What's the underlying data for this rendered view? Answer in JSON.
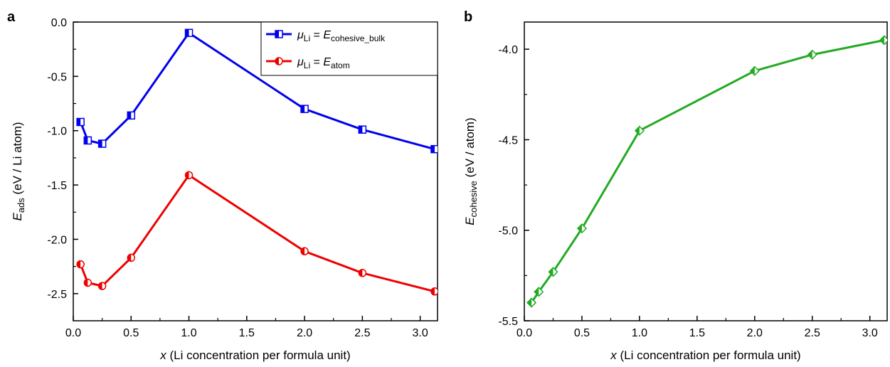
{
  "chart_data": [
    {
      "panel_label": "a",
      "type": "line",
      "x": [
        0.0625,
        0.125,
        0.25,
        0.5,
        1.0,
        2.0,
        2.5,
        3.125
      ],
      "xlim": [
        0,
        3.15
      ],
      "ylim": [
        -2.75,
        0.0
      ],
      "xticks": [
        "0.0",
        "0.5",
        "1.0",
        "1.5",
        "2.0",
        "2.5",
        "3.0"
      ],
      "yticks": [
        "0.0",
        "-0.5",
        "-1.0",
        "-1.5",
        "-2.0",
        "-2.5"
      ],
      "xlabel": {
        "var": "x",
        "text": " (Li concentration per formula unit)"
      },
      "ylabel": {
        "main": "E",
        "sub": "ads",
        "rest": " (eV / Li atom)"
      },
      "legend_position": "top-right",
      "series": [
        {
          "name": "μLi = Ecohesive_bulk",
          "legend": {
            "mu": "μ",
            "mu_sub": "Li",
            "eq": " = ",
            "e": "E",
            "e_sub": "cohesive_bulk"
          },
          "color": "#0000ee",
          "marker": "half-filled-square",
          "values": [
            -0.92,
            -1.09,
            -1.12,
            -0.86,
            -0.1,
            -0.8,
            -0.99,
            -1.17
          ]
        },
        {
          "name": "μLi = Eatom",
          "legend": {
            "mu": "μ",
            "mu_sub": "Li",
            "eq": " = ",
            "e": "E",
            "e_sub": "atom"
          },
          "color": "#ee0000",
          "marker": "half-filled-circle",
          "values": [
            -2.23,
            -2.4,
            -2.43,
            -2.17,
            -1.41,
            -2.11,
            -2.31,
            -2.48
          ]
        }
      ]
    },
    {
      "panel_label": "b",
      "type": "line",
      "x": [
        0.0625,
        0.125,
        0.25,
        0.5,
        1.0,
        2.0,
        2.5,
        3.125
      ],
      "xlim": [
        0,
        3.15
      ],
      "ylim": [
        -5.5,
        -3.85
      ],
      "xticks": [
        "0.0",
        "0.5",
        "1.0",
        "1.5",
        "2.0",
        "2.5",
        "3.0"
      ],
      "yticks": [
        "-4.0",
        "-4.5",
        "-5.0",
        "-5.5"
      ],
      "xlabel": {
        "var": "x",
        "text": " (Li concentration per formula unit)"
      },
      "ylabel": {
        "main": "E",
        "sub": "cohesive",
        "rest": " (eV / atom)"
      },
      "series": [
        {
          "color": "#22aa22",
          "marker": "half-filled-diamond",
          "values": [
            -5.4,
            -5.34,
            -5.23,
            -4.99,
            -4.45,
            -4.12,
            -4.03,
            -3.95
          ]
        }
      ]
    }
  ]
}
